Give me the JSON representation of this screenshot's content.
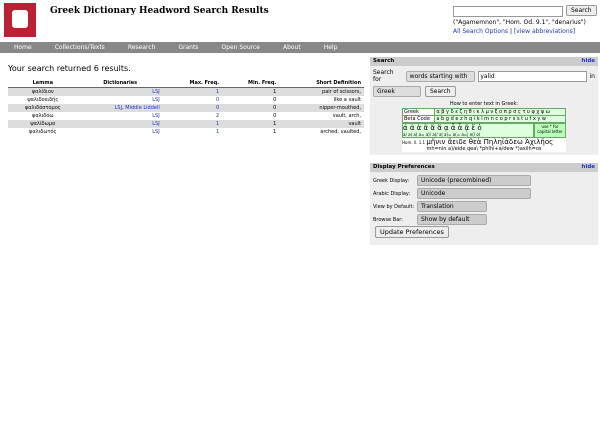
{
  "header": {
    "title": "Greek Dictionary Headword Search Results",
    "search_button": "Search",
    "examples": "(\"Agamemnon\", \"Hom. Od. 9.1\", \"denarius\")",
    "all_options": "All Search Options",
    "abbreviations": "[view abbreviations]"
  },
  "nav": [
    "Home",
    "Collections/Texts",
    "Research",
    "Grants",
    "Open Source",
    "About",
    "Help"
  ],
  "results": {
    "summary": "Your search returned 6 results.",
    "columns": [
      "Lemma",
      "Dictionaries",
      "Max. Freq.",
      "Min. Freq.",
      "Short Definition"
    ],
    "rows": [
      {
        "lemma": "ψαλίδιον",
        "dictionaries": [
          "LSJ"
        ],
        "max": "1",
        "min": "1",
        "definition": "pair of scissors,"
      },
      {
        "lemma": "ψαλιδοειδής",
        "dictionaries": [
          "LSJ"
        ],
        "max": "0",
        "min": "0",
        "definition": "like a vault"
      },
      {
        "lemma": "ψαλιδόστομος",
        "dictionaries": [
          "LSJ",
          "Middle Liddell"
        ],
        "max": "0",
        "min": "0",
        "definition": "nipper-mouthed,"
      },
      {
        "lemma": "ψαλιδόω",
        "dictionaries": [
          "LSJ"
        ],
        "max": "2",
        "min": "0",
        "definition": "vault, arch,"
      },
      {
        "lemma": "ψαλίδωμα",
        "dictionaries": [
          "LSJ"
        ],
        "max": "1",
        "min": "1",
        "definition": "vault"
      },
      {
        "lemma": "ψαλιδωτός",
        "dictionaries": [
          "LSJ"
        ],
        "max": "1",
        "min": "1",
        "definition": "arched, vaulted,"
      }
    ]
  },
  "search_panel": {
    "title": "Search",
    "hide": "hide",
    "search_for": "Search for",
    "mode": "words starting with",
    "query": "yalid",
    "in": "in",
    "language": "Greek",
    "button": "Search",
    "howto": "How to enter text in Greek:",
    "keyboard": {
      "greek_label": "Greek",
      "greek": "α β γ δ ε ζ η θ ι κ λ μ ν ξ ο π ρ σ ς τ υ φ χ ψ ω",
      "beta_label": "Beta Code",
      "beta": "a b g d e z h q i k l m n c o p r s s t u f x y w",
      "accents": "ά ἀ ἁ ᾶ ἄ ἅ ᾳ ἆ ἇ ᾷ ἕ ὁ",
      "accents_beta": "a/ a) a( a= a)/ a(/ a| a)= a(= a=| e(/ o(",
      "capital": "use * for capital letter",
      "example_ref": "Hom. Il. 1.1",
      "example_greek": "μῆνιν ἄειδε θεὰ Πηληϊάδεω Ἀχιλῆος",
      "example_beta": "mh=nin a)/eide qea\\ *phlhi+a/dew *)axilh=os"
    }
  },
  "prefs_panel": {
    "title": "Display Preferences",
    "hide": "hide",
    "rows": [
      [
        "Greek Display:",
        "Unicode (precombined)"
      ],
      [
        "Arabic Display:",
        "Unicode"
      ],
      [
        "View by Default:",
        "Translation"
      ],
      [
        "Browse Bar:",
        "Show by default"
      ]
    ],
    "button": "Update Preferences"
  }
}
